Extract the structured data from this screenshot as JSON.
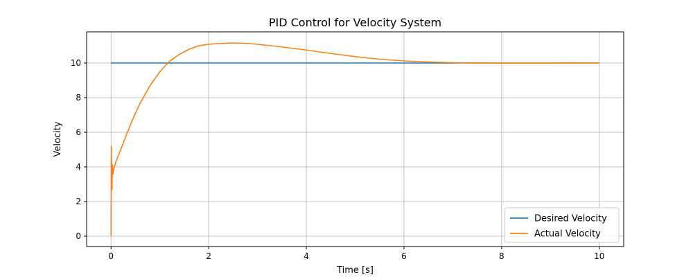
{
  "chart_data": {
    "type": "line",
    "title": "PID Control for Velocity System",
    "xlabel": "Time [s]",
    "ylabel": "Velocity",
    "xlim": [
      -0.5,
      10.5
    ],
    "ylim": [
      -0.6,
      11.8
    ],
    "xticks": [
      0,
      2,
      4,
      6,
      8,
      10
    ],
    "yticks": [
      0,
      2,
      4,
      6,
      8,
      10
    ],
    "grid": true,
    "legend_position": "lower-right",
    "series": [
      {
        "name": "Desired Velocity",
        "color": "#1f77b4",
        "x": [
          0,
          10
        ],
        "y": [
          10,
          10
        ]
      },
      {
        "name": "Actual Velocity",
        "color": "#ff7f0e",
        "x": [
          0,
          0.005,
          0.01,
          0.015,
          0.02,
          0.025,
          0.03,
          0.04,
          0.05,
          0.06,
          0.08,
          0.1,
          0.2,
          0.3,
          0.4,
          0.5,
          0.6,
          0.7,
          0.8,
          1.0,
          1.2,
          1.4,
          1.6,
          1.8,
          2.0,
          2.2,
          2.4,
          2.6,
          2.8,
          3.0,
          3.5,
          4.0,
          4.5,
          5.0,
          5.5,
          6.0,
          6.5,
          7.0,
          7.5,
          8.0,
          8.5,
          9.0,
          9.5,
          10.0
        ],
        "y": [
          0,
          5.2,
          4.4,
          3.3,
          2.7,
          3.8,
          4.1,
          3.6,
          3.8,
          3.9,
          4.1,
          4.3,
          5.0,
          5.75,
          6.45,
          7.1,
          7.7,
          8.2,
          8.7,
          9.5,
          10.1,
          10.5,
          10.8,
          11.0,
          11.08,
          11.12,
          11.15,
          11.15,
          11.13,
          11.08,
          10.93,
          10.75,
          10.55,
          10.37,
          10.22,
          10.12,
          10.06,
          10.02,
          10.0,
          9.99,
          9.99,
          9.99,
          10.0,
          10.0
        ]
      }
    ]
  }
}
